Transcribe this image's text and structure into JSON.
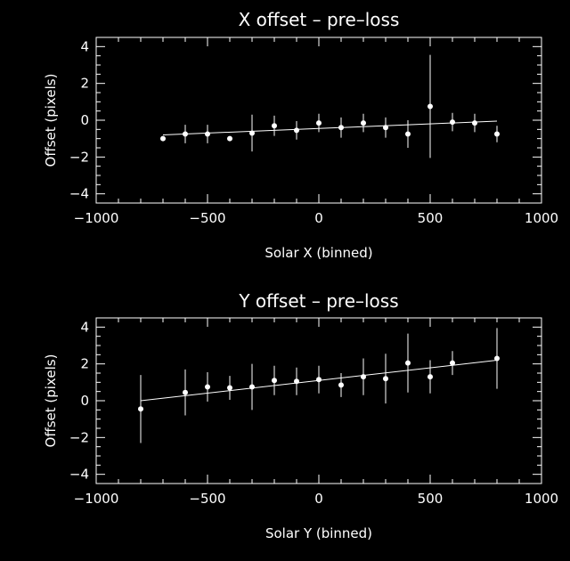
{
  "chart_data": [
    {
      "type": "scatter",
      "title": "X offset – pre–loss",
      "xlabel": "Solar X (binned)",
      "ylabel": "Offset (pixels)",
      "xlim": [
        -1000,
        1000
      ],
      "ylim": [
        -4.5,
        4.5
      ],
      "x_ticks": [
        -1000,
        -500,
        0,
        500,
        1000
      ],
      "x_tick_labels": [
        "−1000",
        "−500",
        "0",
        "500",
        "1000"
      ],
      "y_ticks": [
        -4,
        -2,
        0,
        2,
        4
      ],
      "y_tick_labels": [
        "−4",
        "−2",
        "0",
        "2",
        "4"
      ],
      "x_minor_step": 100,
      "y_minor_step": 0.5,
      "series": [
        {
          "x": [
            -700,
            -600,
            -500,
            -400,
            -300,
            -200,
            -100,
            0,
            100,
            200,
            300,
            400,
            500,
            600,
            700,
            800
          ],
          "y": [
            -1.0,
            -0.75,
            -0.75,
            -1.0,
            -0.7,
            -0.3,
            -0.55,
            -0.15,
            -0.4,
            -0.15,
            -0.4,
            -0.75,
            0.75,
            -0.1,
            -0.15,
            -0.75
          ],
          "err": [
            0.0,
            0.5,
            0.5,
            0.0,
            1.0,
            0.55,
            0.5,
            0.5,
            0.55,
            0.5,
            0.55,
            0.75,
            2.8,
            0.5,
            0.5,
            0.45
          ]
        }
      ],
      "fit_line": {
        "x": [
          -700,
          800
        ],
        "y": [
          -0.8,
          -0.05
        ]
      }
    },
    {
      "type": "scatter",
      "title": "Y offset – pre–loss",
      "xlabel": "Solar Y (binned)",
      "ylabel": "Offset (pixels)",
      "xlim": [
        -1000,
        1000
      ],
      "ylim": [
        -4.5,
        4.5
      ],
      "x_ticks": [
        -1000,
        -500,
        0,
        500,
        1000
      ],
      "x_tick_labels": [
        "−1000",
        "−500",
        "0",
        "500",
        "1000"
      ],
      "y_ticks": [
        -4,
        -2,
        0,
        2,
        4
      ],
      "y_tick_labels": [
        "−4",
        "−2",
        "0",
        "2",
        "4"
      ],
      "x_minor_step": 100,
      "y_minor_step": 0.5,
      "series": [
        {
          "x": [
            -800,
            -600,
            -500,
            -400,
            -300,
            -200,
            -100,
            0,
            100,
            200,
            300,
            400,
            500,
            600,
            800
          ],
          "y": [
            -0.45,
            0.45,
            0.75,
            0.7,
            0.75,
            1.1,
            1.05,
            1.15,
            0.85,
            1.3,
            1.2,
            2.05,
            1.3,
            2.05,
            2.3
          ],
          "err": [
            1.85,
            1.25,
            0.8,
            0.65,
            1.25,
            0.8,
            0.75,
            0.75,
            0.65,
            1.0,
            1.35,
            1.6,
            0.9,
            0.65,
            1.65
          ]
        }
      ],
      "fit_line": {
        "x": [
          -800,
          800
        ],
        "y": [
          0.0,
          2.2
        ]
      }
    }
  ]
}
